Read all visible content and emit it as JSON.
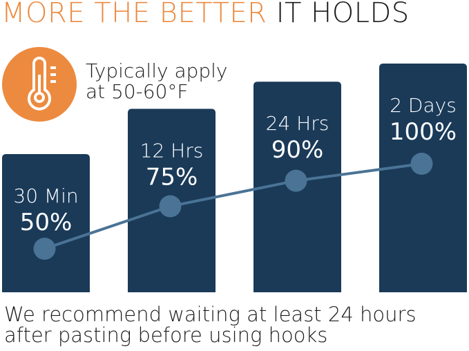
{
  "header": {
    "title_accent": "MORE THE BETTER",
    "title_rest": "IT HOLDS"
  },
  "temperature_note": {
    "icon": "thermometer-icon",
    "line1": "Typically apply",
    "line2": "at 50-60°F"
  },
  "chart_data": {
    "type": "bar",
    "categories": [
      "30 Min",
      "12 Hrs",
      "24 Hrs",
      "2 Days"
    ],
    "values": [
      50,
      75,
      90,
      100
    ],
    "value_labels": [
      "50%",
      "75%",
      "90%",
      "100%"
    ],
    "overlay": "line",
    "grid": false
  },
  "footer": {
    "line1": "We recommend waiting at least 24 hours",
    "line2": "after pasting before using hooks"
  },
  "colors": {
    "accent": "#ec8a3f",
    "bar": "#1a3a58",
    "line": "#4a7395",
    "text": "#1b1b1b"
  }
}
